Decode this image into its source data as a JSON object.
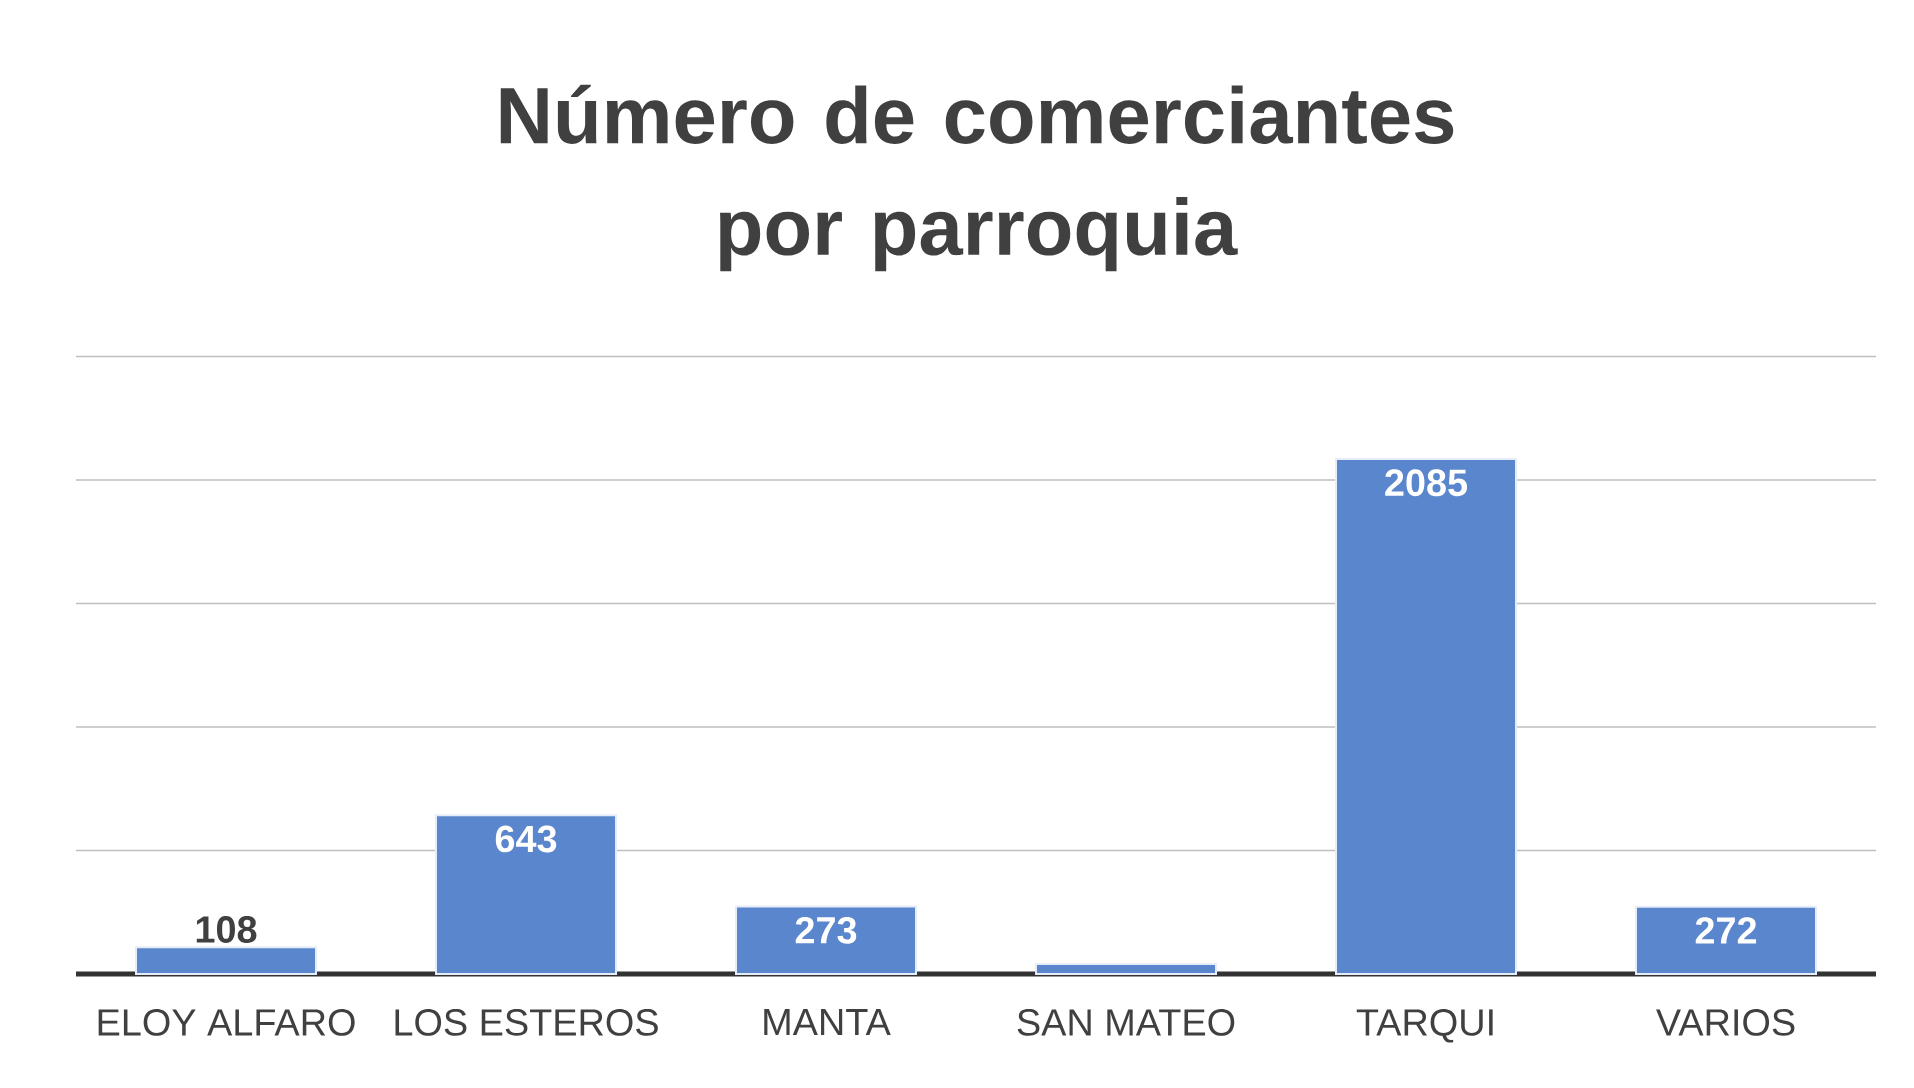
{
  "chart_data": {
    "type": "bar",
    "title": "Número de comerciantes por parroquia",
    "categories": [
      "ELOY ALFARO",
      "LOS ESTEROS",
      "MANTA",
      "SAN MATEO",
      "TARQUI",
      "VARIOS"
    ],
    "values": [
      108,
      643,
      273,
      40,
      2085,
      272
    ],
    "value_labels": [
      "108",
      "643",
      "273",
      null,
      "2085",
      "272"
    ],
    "color": "#5a86cd",
    "tick_labels": "x",
    "grid": "y"
  }
}
